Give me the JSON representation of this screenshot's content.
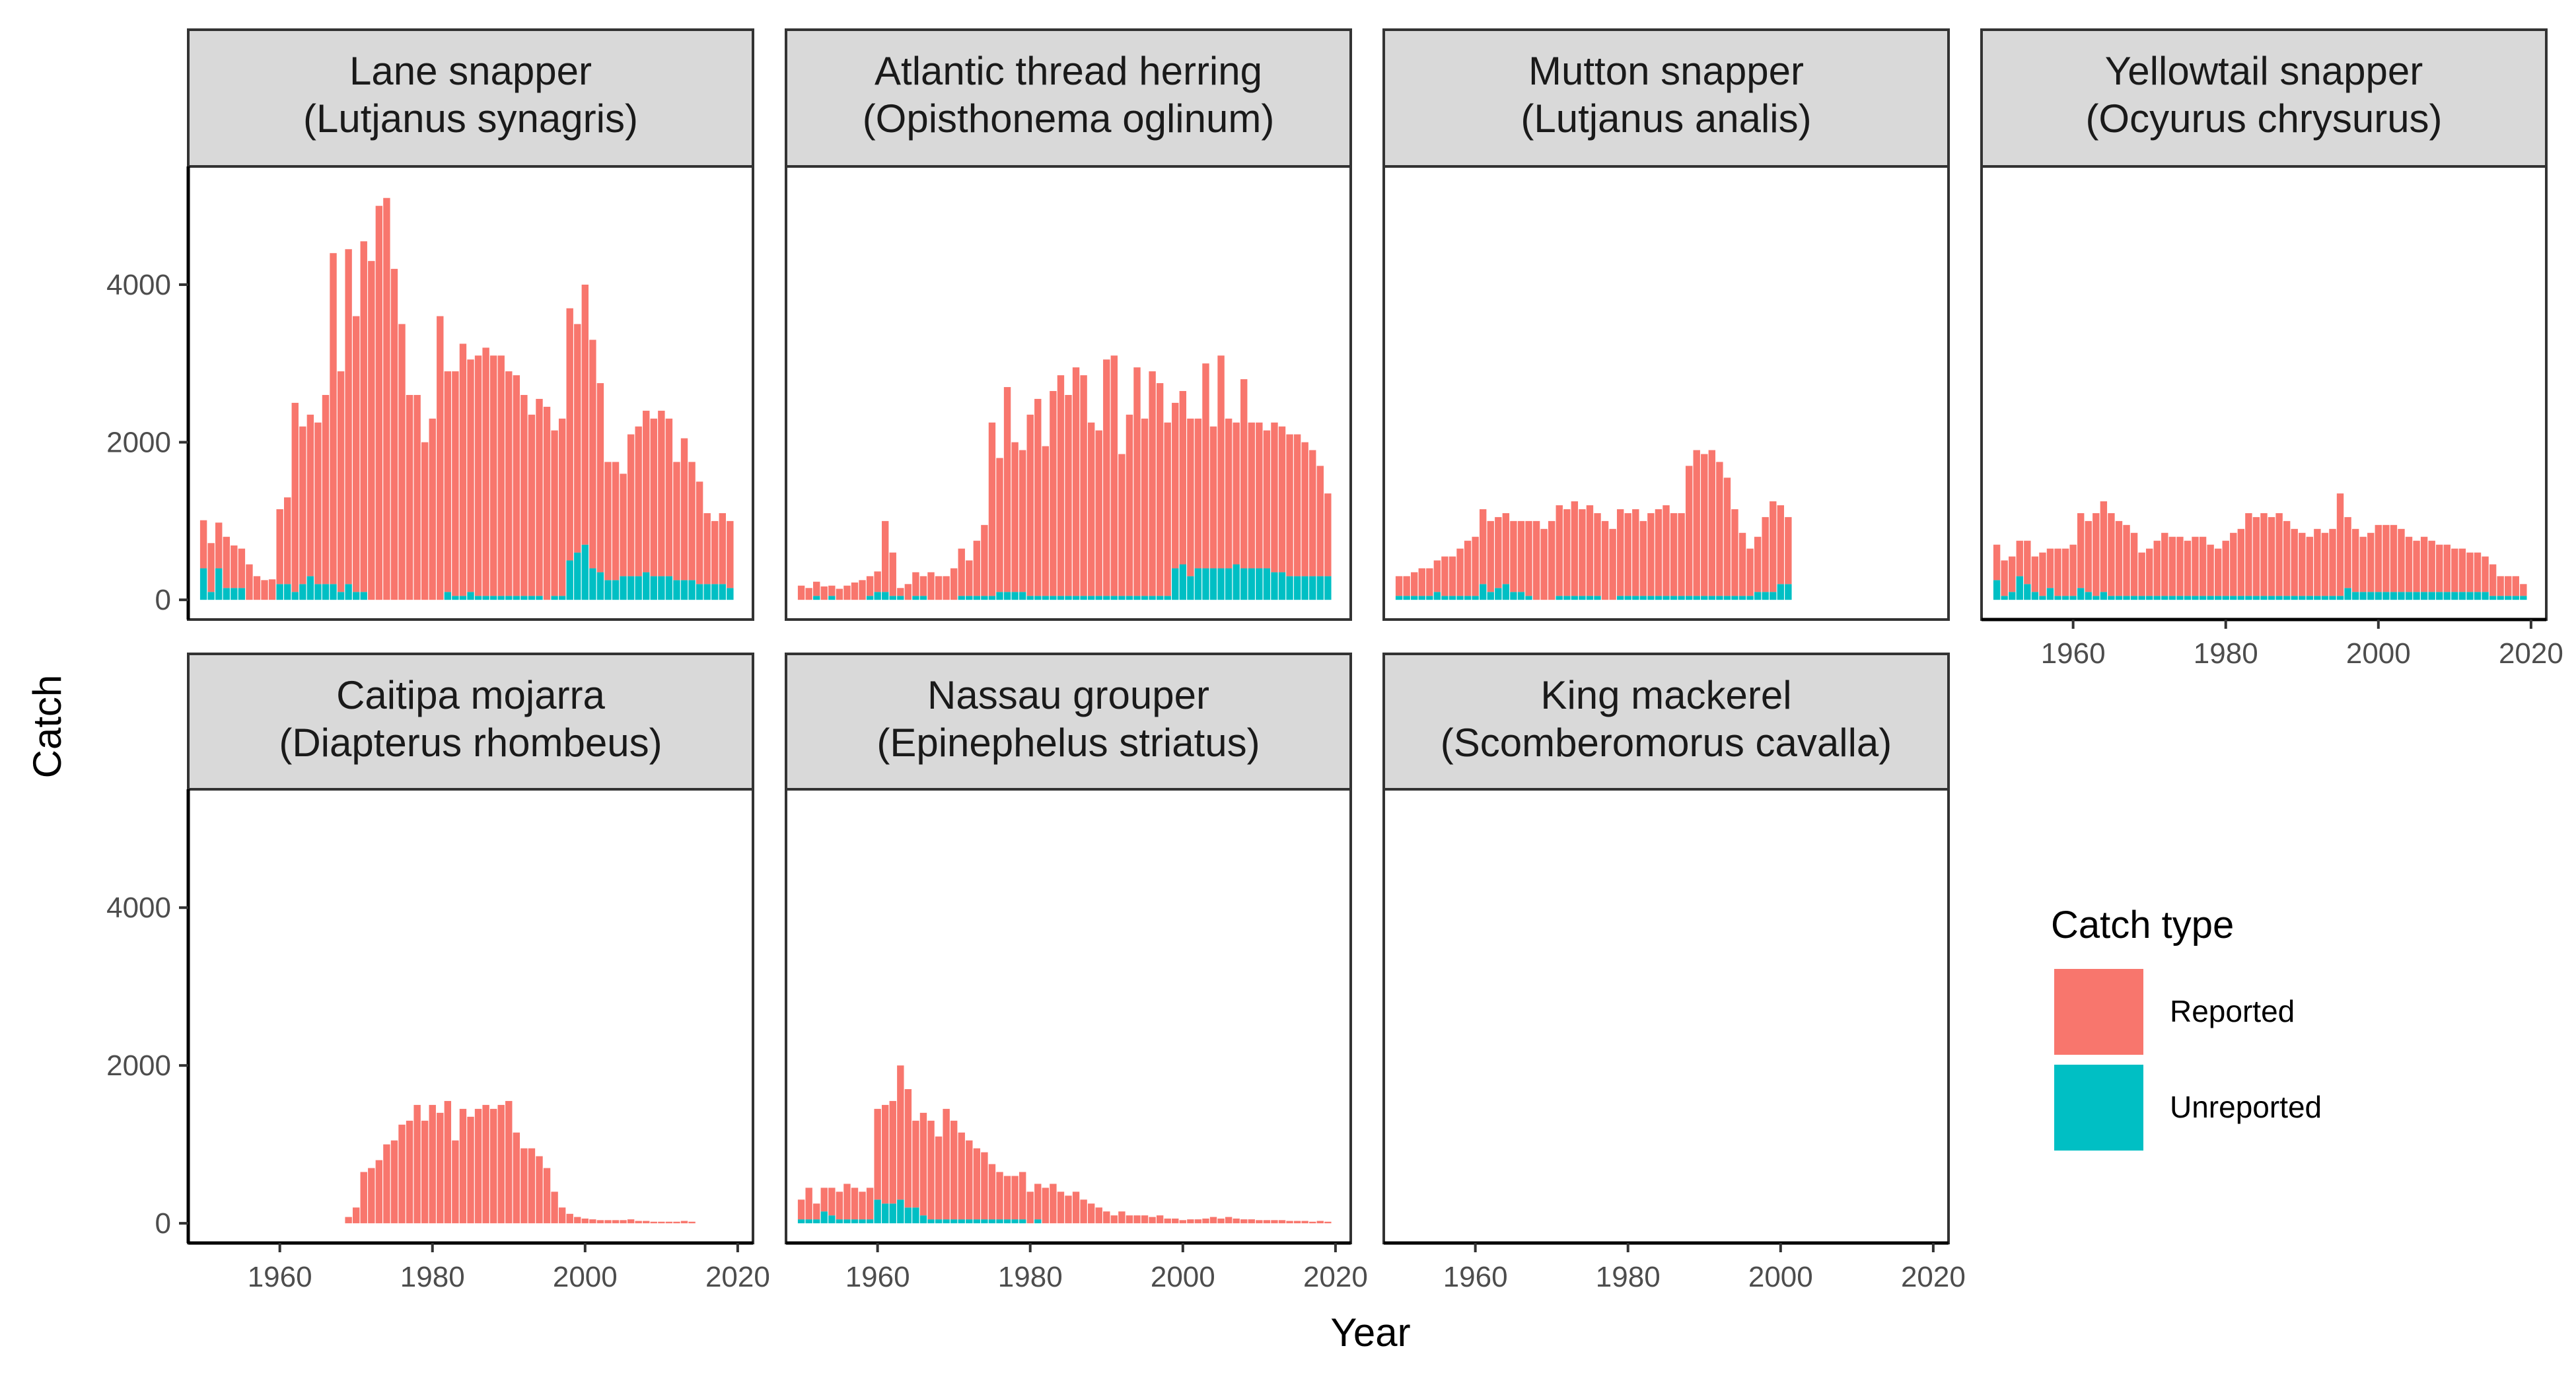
{
  "colors": {
    "reported": "#F8766D",
    "unreported": "#00BFC4",
    "strip_bg": "#D9D9D9",
    "panel_border": "#333333"
  },
  "chart_data": {
    "type": "bar",
    "stacked": true,
    "xlabel": "Year",
    "ylabel": "Catch",
    "xlim": [
      1948,
      2022
    ],
    "ylim": [
      -250,
      5500
    ],
    "xticks": [
      1960,
      1980,
      2000,
      2020
    ],
    "yticks": [
      0,
      2000,
      4000
    ],
    "legend": {
      "title": "Catch type",
      "position": "right",
      "entries": [
        {
          "label": "Reported",
          "color": "#F8766D"
        },
        {
          "label": "Unreported",
          "color": "#00BFC4"
        }
      ]
    },
    "panels": [
      {
        "title_line1": "Lane snapper",
        "title_line2": "(Lutjanus synagris)",
        "start_year": 1950,
        "reported": [
          610,
          620,
          580,
          650,
          540,
          500,
          450,
          300,
          250,
          260,
          950,
          1100,
          2400,
          2000,
          2050,
          2050,
          2400,
          4200,
          2800,
          4250,
          3500,
          4450,
          4300,
          5000,
          5100,
          4200,
          3500,
          2600,
          2600,
          2000,
          2300,
          3600,
          2800,
          2850,
          3200,
          2950,
          3050,
          3150,
          3050,
          3050,
          2850,
          2800,
          2550,
          2300,
          2500,
          2450,
          2100,
          2250,
          3200,
          2900,
          3300,
          2900,
          2400,
          1500,
          1500,
          1300,
          1800,
          1900,
          2050,
          2000,
          2100,
          2000,
          1500,
          1800,
          1500,
          1300,
          900,
          800,
          900,
          850
        ],
        "unreported": [
          400,
          100,
          400,
          150,
          150,
          150,
          0,
          0,
          0,
          0,
          200,
          200,
          100,
          200,
          300,
          200,
          200,
          200,
          100,
          200,
          100,
          100,
          0,
          0,
          0,
          0,
          0,
          0,
          0,
          0,
          0,
          0,
          100,
          50,
          50,
          100,
          50,
          50,
          50,
          50,
          50,
          50,
          50,
          50,
          50,
          0,
          50,
          50,
          500,
          600,
          700,
          400,
          350,
          250,
          250,
          300,
          300,
          300,
          350,
          300,
          300,
          300,
          250,
          250,
          250,
          200,
          200,
          200,
          200,
          150
        ]
      },
      {
        "title_line1": "Atlantic thread herring",
        "title_line2": "(Opisthonema oglinum)",
        "start_year": 1950,
        "reported": [
          180,
          150,
          180,
          170,
          130,
          140,
          180,
          220,
          250,
          250,
          260,
          900,
          550,
          100,
          200,
          300,
          250,
          350,
          300,
          300,
          400,
          600,
          450,
          700,
          900,
          2200,
          1700,
          2600,
          1900,
          1800,
          2300,
          2500,
          1900,
          2600,
          2800,
          2550,
          2900,
          2800,
          2200,
          2100,
          3000,
          3050,
          1800,
          2300,
          2900,
          2250,
          2850,
          2700,
          2200,
          2100,
          2200,
          2000,
          1900,
          2600,
          1800,
          2700,
          1900,
          1800,
          2400,
          1850,
          1850,
          1750,
          1900,
          1850,
          1800,
          1800,
          1700,
          1600,
          1400,
          1050
        ],
        "unreported": [
          0,
          0,
          50,
          0,
          50,
          0,
          0,
          0,
          0,
          50,
          100,
          100,
          50,
          50,
          0,
          50,
          50,
          0,
          0,
          0,
          0,
          50,
          50,
          50,
          50,
          50,
          100,
          100,
          100,
          100,
          50,
          50,
          50,
          50,
          50,
          50,
          50,
          50,
          50,
          50,
          50,
          50,
          50,
          50,
          50,
          50,
          50,
          50,
          50,
          400,
          450,
          300,
          400,
          400,
          400,
          400,
          400,
          450,
          400,
          400,
          400,
          400,
          350,
          350,
          300,
          300,
          300,
          300,
          300,
          300
        ]
      },
      {
        "title_line1": "Mutton snapper",
        "title_line2": "(Lutjanus analis)",
        "start_year": 1950,
        "reported": [
          250,
          250,
          300,
          350,
          350,
          400,
          500,
          500,
          600,
          700,
          750,
          950,
          900,
          900,
          900,
          900,
          900,
          950,
          1000,
          900,
          1000,
          1150,
          1100,
          1200,
          1100,
          1150,
          1050,
          1000,
          900,
          1100,
          1050,
          1100,
          950,
          1050,
          1100,
          1150,
          1050,
          1050,
          1650,
          1850,
          1800,
          1850,
          1700,
          1500,
          1100,
          800,
          600,
          700,
          950,
          1150,
          1000,
          850
        ],
        "unreported": [
          50,
          50,
          50,
          50,
          50,
          100,
          50,
          50,
          50,
          50,
          50,
          200,
          100,
          150,
          200,
          100,
          100,
          50,
          0,
          0,
          0,
          50,
          50,
          50,
          50,
          50,
          50,
          0,
          0,
          50,
          50,
          50,
          50,
          50,
          50,
          50,
          50,
          50,
          50,
          50,
          50,
          50,
          50,
          50,
          50,
          50,
          50,
          100,
          100,
          100,
          200,
          200
        ]
      },
      {
        "title_line1": "Yellowtail snapper",
        "title_line2": "(Ocyurus chrysurus)",
        "start_year": 1950,
        "reported": [
          450,
          450,
          450,
          450,
          550,
          450,
          550,
          500,
          600,
          600,
          650,
          950,
          900,
          1050,
          1150,
          1050,
          950,
          900,
          800,
          550,
          600,
          700,
          800,
          750,
          750,
          700,
          750,
          750,
          650,
          600,
          700,
          800,
          850,
          1050,
          1000,
          1050,
          1000,
          1050,
          950,
          850,
          800,
          750,
          850,
          800,
          850,
          1300,
          900,
          800,
          700,
          750,
          850,
          850,
          850,
          800,
          700,
          650,
          700,
          650,
          600,
          600,
          550,
          550,
          500,
          500,
          450,
          400,
          250,
          250,
          250,
          150
        ],
        "unreported": [
          250,
          50,
          100,
          300,
          200,
          100,
          50,
          150,
          50,
          50,
          50,
          150,
          100,
          50,
          100,
          50,
          50,
          50,
          50,
          50,
          50,
          50,
          50,
          50,
          50,
          50,
          50,
          50,
          50,
          50,
          50,
          50,
          50,
          50,
          50,
          50,
          50,
          50,
          50,
          50,
          50,
          50,
          50,
          50,
          50,
          50,
          150,
          100,
          100,
          100,
          100,
          100,
          100,
          100,
          100,
          100,
          100,
          100,
          100,
          100,
          100,
          100,
          100,
          100,
          100,
          50,
          50,
          50,
          50,
          50
        ]
      },
      {
        "title_line1": "Caitipa mojarra",
        "title_line2": "(Diapterus rhombeus)",
        "start_year": 1969,
        "reported": [
          80,
          200,
          650,
          700,
          800,
          1000,
          1050,
          1250,
          1300,
          1500,
          1300,
          1500,
          1400,
          1550,
          1050,
          1450,
          1350,
          1450,
          1500,
          1450,
          1500,
          1550,
          1150,
          950,
          950,
          850,
          700,
          400,
          200,
          120,
          80,
          60,
          50,
          40,
          40,
          40,
          40,
          50,
          30,
          30,
          20,
          20,
          20,
          20,
          30,
          20
        ],
        "unreported": [
          0,
          0,
          0,
          0,
          0,
          0,
          0,
          0,
          0,
          0,
          0,
          0,
          0,
          0,
          0,
          0,
          0,
          0,
          0,
          0,
          0,
          0,
          0,
          0,
          0,
          0,
          0,
          0,
          0,
          0,
          0,
          0,
          0,
          0,
          0,
          0,
          0,
          0,
          0,
          0,
          0,
          0,
          0,
          0,
          0,
          0
        ]
      },
      {
        "title_line1": "Nassau grouper",
        "title_line2": "(Epinephelus striatus)",
        "start_year": 1950,
        "reported": [
          250,
          400,
          200,
          300,
          350,
          350,
          450,
          400,
          350,
          400,
          1150,
          1250,
          1300,
          1700,
          1500,
          1100,
          1300,
          1250,
          1050,
          1400,
          1250,
          1100,
          1000,
          900,
          850,
          700,
          600,
          550,
          550,
          600,
          400,
          450,
          450,
          500,
          400,
          350,
          400,
          300,
          250,
          200,
          150,
          100,
          150,
          100,
          100,
          100,
          80,
          100,
          60,
          60,
          40,
          50,
          50,
          60,
          80,
          60,
          80,
          60,
          50,
          50,
          40,
          40,
          40,
          40,
          30,
          30,
          30,
          20,
          30,
          20
        ],
        "unreported": [
          50,
          50,
          50,
          150,
          100,
          50,
          50,
          50,
          50,
          50,
          300,
          250,
          250,
          300,
          200,
          200,
          100,
          50,
          50,
          50,
          50,
          50,
          50,
          50,
          50,
          50,
          50,
          50,
          50,
          50,
          0,
          50,
          0,
          0,
          0,
          0,
          0,
          0,
          0,
          0,
          0,
          0,
          0,
          0,
          0,
          0,
          0,
          0,
          0,
          0,
          0,
          0,
          0,
          0,
          0,
          0,
          0,
          0,
          0,
          0,
          0,
          0,
          0,
          0,
          0,
          0,
          0,
          0,
          0,
          0
        ]
      },
      {
        "title_line1": "King mackerel",
        "title_line2": "(Scomberomorus cavalla)",
        "start_year": 1950,
        "reported": [],
        "unreported": []
      }
    ]
  }
}
